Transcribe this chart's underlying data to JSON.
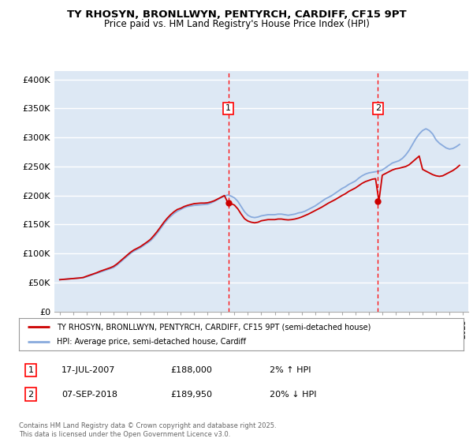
{
  "title_line1": "TY RHOSYN, BRONLLWYN, PENTYRCH, CARDIFF, CF15 9PT",
  "title_line2": "Price paid vs. HM Land Registry's House Price Index (HPI)",
  "ylabel_ticks": [
    "£0",
    "£50K",
    "£100K",
    "£150K",
    "£200K",
    "£250K",
    "£300K",
    "£350K",
    "£400K"
  ],
  "ylabel_values": [
    0,
    50000,
    100000,
    150000,
    200000,
    250000,
    300000,
    350000,
    400000
  ],
  "ylim": [
    0,
    415000
  ],
  "xlim_start": 1994.6,
  "xlim_end": 2025.4,
  "bg_color": "#dde8f4",
  "grid_color": "#ffffff",
  "hpi_color": "#88aadd",
  "price_color": "#cc0000",
  "marker1_x": 2007.54,
  "marker1_y": 188000,
  "marker2_x": 2018.68,
  "marker2_y": 189950,
  "marker1_label": "1",
  "marker2_label": "2",
  "legend_line1": "TY RHOSYN, BRONLLWYN, PENTYRCH, CARDIFF, CF15 9PT (semi-detached house)",
  "legend_line2": "HPI: Average price, semi-detached house, Cardiff",
  "annotation1_date": "17-JUL-2007",
  "annotation1_price": "£188,000",
  "annotation1_hpi": "2% ↑ HPI",
  "annotation2_date": "07-SEP-2018",
  "annotation2_price": "£189,950",
  "annotation2_hpi": "20% ↓ HPI",
  "footer": "Contains HM Land Registry data © Crown copyright and database right 2025.\nThis data is licensed under the Open Government Licence v3.0.",
  "hpi_data_x": [
    1995.0,
    1995.25,
    1995.5,
    1995.75,
    1996.0,
    1996.25,
    1996.5,
    1996.75,
    1997.0,
    1997.25,
    1997.5,
    1997.75,
    1998.0,
    1998.25,
    1998.5,
    1998.75,
    1999.0,
    1999.25,
    1999.5,
    1999.75,
    2000.0,
    2000.25,
    2000.5,
    2000.75,
    2001.0,
    2001.25,
    2001.5,
    2001.75,
    2002.0,
    2002.25,
    2002.5,
    2002.75,
    2003.0,
    2003.25,
    2003.5,
    2003.75,
    2004.0,
    2004.25,
    2004.5,
    2004.75,
    2005.0,
    2005.25,
    2005.5,
    2005.75,
    2006.0,
    2006.25,
    2006.5,
    2006.75,
    2007.0,
    2007.25,
    2007.5,
    2007.75,
    2008.0,
    2008.25,
    2008.5,
    2008.75,
    2009.0,
    2009.25,
    2009.5,
    2009.75,
    2010.0,
    2010.25,
    2010.5,
    2010.75,
    2011.0,
    2011.25,
    2011.5,
    2011.75,
    2012.0,
    2012.25,
    2012.5,
    2012.75,
    2013.0,
    2013.25,
    2013.5,
    2013.75,
    2014.0,
    2014.25,
    2014.5,
    2014.75,
    2015.0,
    2015.25,
    2015.5,
    2015.75,
    2016.0,
    2016.25,
    2016.5,
    2016.75,
    2017.0,
    2017.25,
    2017.5,
    2017.75,
    2018.0,
    2018.25,
    2018.5,
    2018.75,
    2019.0,
    2019.25,
    2019.5,
    2019.75,
    2020.0,
    2020.25,
    2020.5,
    2020.75,
    2021.0,
    2021.25,
    2021.5,
    2021.75,
    2022.0,
    2022.25,
    2022.5,
    2022.75,
    2023.0,
    2023.25,
    2023.5,
    2023.75,
    2024.0,
    2024.25,
    2024.5,
    2024.75
  ],
  "hpi_data_y": [
    55000,
    55500,
    56000,
    56500,
    57000,
    57500,
    58000,
    58500,
    60000,
    62000,
    64000,
    66000,
    68000,
    70000,
    72000,
    74000,
    76000,
    80000,
    85000,
    90000,
    95000,
    100000,
    104000,
    107000,
    110000,
    114000,
    118000,
    122000,
    128000,
    135000,
    143000,
    151000,
    158000,
    164000,
    169000,
    173000,
    176000,
    179000,
    181000,
    182000,
    183000,
    183500,
    184000,
    184500,
    185000,
    187000,
    190000,
    193000,
    196000,
    199000,
    201000,
    199000,
    196000,
    190000,
    181000,
    172000,
    166000,
    163000,
    162000,
    163000,
    165000,
    166000,
    167000,
    167000,
    167000,
    168000,
    168000,
    167000,
    166000,
    167000,
    168000,
    170000,
    171000,
    173000,
    176000,
    179000,
    182000,
    186000,
    190000,
    194000,
    197000,
    200000,
    204000,
    208000,
    212000,
    215000,
    219000,
    222000,
    225000,
    230000,
    234000,
    237000,
    239000,
    240000,
    241000,
    242000,
    244000,
    248000,
    252000,
    256000,
    258000,
    260000,
    264000,
    270000,
    278000,
    288000,
    298000,
    306000,
    312000,
    315000,
    312000,
    306000,
    296000,
    290000,
    286000,
    282000,
    280000,
    281000,
    284000,
    288000
  ],
  "price_data_x": [
    1995.0,
    1995.25,
    1995.5,
    1995.75,
    1996.0,
    1996.25,
    1996.5,
    1996.75,
    1997.0,
    1997.25,
    1997.5,
    1997.75,
    1998.0,
    1998.25,
    1998.5,
    1998.75,
    1999.0,
    1999.25,
    1999.5,
    1999.75,
    2000.0,
    2000.25,
    2000.5,
    2000.75,
    2001.0,
    2001.25,
    2001.5,
    2001.75,
    2002.0,
    2002.25,
    2002.5,
    2002.75,
    2003.0,
    2003.25,
    2003.5,
    2003.75,
    2004.0,
    2004.25,
    2004.5,
    2004.75,
    2005.0,
    2005.25,
    2005.5,
    2005.75,
    2006.0,
    2006.25,
    2006.5,
    2006.75,
    2007.0,
    2007.25,
    2007.5,
    2007.75,
    2008.0,
    2008.25,
    2008.5,
    2008.75,
    2009.0,
    2009.25,
    2009.5,
    2009.75,
    2010.0,
    2010.25,
    2010.5,
    2010.75,
    2011.0,
    2011.25,
    2011.5,
    2011.75,
    2012.0,
    2012.25,
    2012.5,
    2012.75,
    2013.0,
    2013.25,
    2013.5,
    2013.75,
    2014.0,
    2014.25,
    2014.5,
    2014.75,
    2015.0,
    2015.25,
    2015.5,
    2015.75,
    2016.0,
    2016.25,
    2016.5,
    2016.75,
    2017.0,
    2017.25,
    2017.5,
    2017.75,
    2018.0,
    2018.25,
    2018.5,
    2018.75,
    2019.0,
    2019.25,
    2019.5,
    2019.75,
    2020.0,
    2020.25,
    2020.5,
    2020.75,
    2021.0,
    2021.25,
    2021.5,
    2021.75,
    2022.0,
    2022.25,
    2022.5,
    2022.75,
    2023.0,
    2023.25,
    2023.5,
    2023.75,
    2024.0,
    2024.25,
    2024.5,
    2024.75
  ],
  "price_data_y": [
    55000,
    55500,
    56000,
    56500,
    57000,
    57500,
    58000,
    58800,
    61000,
    63000,
    65000,
    67000,
    69500,
    71500,
    73500,
    75500,
    78000,
    82000,
    87000,
    92000,
    97000,
    102000,
    106000,
    109000,
    112000,
    116000,
    120000,
    124500,
    131000,
    138000,
    146000,
    154000,
    161000,
    167000,
    172000,
    176000,
    178000,
    181000,
    183000,
    184500,
    186000,
    186500,
    187000,
    187000,
    187500,
    189000,
    191000,
    194000,
    197000,
    200000,
    188000,
    186000,
    183500,
    177000,
    168000,
    160000,
    156000,
    154000,
    153000,
    154000,
    156500,
    157500,
    158500,
    158500,
    158500,
    159500,
    159500,
    158500,
    158000,
    158500,
    159500,
    161000,
    163000,
    165500,
    168000,
    171000,
    174000,
    177000,
    180000,
    183500,
    187000,
    190000,
    193000,
    196500,
    200000,
    203000,
    207000,
    210000,
    213000,
    217000,
    221000,
    224000,
    226000,
    228000,
    229000,
    190000,
    235000,
    238000,
    241000,
    244000,
    246000,
    247000,
    248500,
    250000,
    253000,
    258000,
    263000,
    268000,
    245000,
    242000,
    239000,
    236000,
    234000,
    233000,
    234000,
    237000,
    240000,
    243000,
    247000,
    252000
  ]
}
